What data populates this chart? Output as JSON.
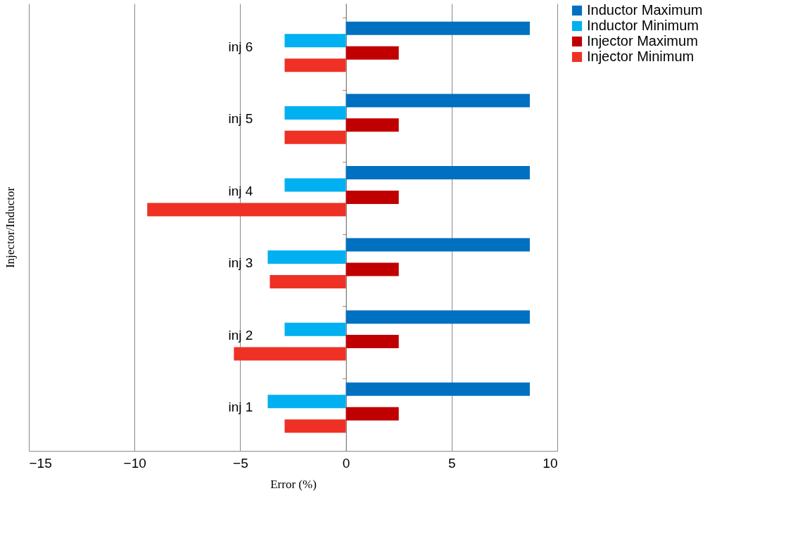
{
  "chart_data": {
    "type": "bar",
    "orientation": "horizontal",
    "xlabel": "Error (%)",
    "ylabel": "Injector/Inductor",
    "categories": [
      "inj 6",
      "inj 5",
      "inj 4",
      "inj 3",
      "inj 2",
      "inj 1"
    ],
    "series": [
      {
        "name": "Inductor Maximum",
        "color": "#0070c0",
        "values": [
          8.7,
          8.7,
          8.7,
          8.7,
          8.7,
          8.7
        ]
      },
      {
        "name": "Inductor Minimum",
        "color": "#00b0f0",
        "values": [
          -2.9,
          -2.9,
          -2.9,
          -3.7,
          -2.9,
          -3.7
        ]
      },
      {
        "name": "Injector Maximum",
        "color": "#c00000",
        "values": [
          2.5,
          2.5,
          2.5,
          2.5,
          2.5,
          2.5
        ]
      },
      {
        "name": "Injector Minimum",
        "color": "#ee3124",
        "values": [
          -2.9,
          -2.9,
          -9.4,
          -3.6,
          -5.3,
          -2.9
        ]
      }
    ],
    "xlim": [
      -15,
      10
    ],
    "xticks": [
      -15,
      -10,
      -5,
      0,
      5,
      10
    ],
    "grid": "x",
    "legend": "right"
  }
}
